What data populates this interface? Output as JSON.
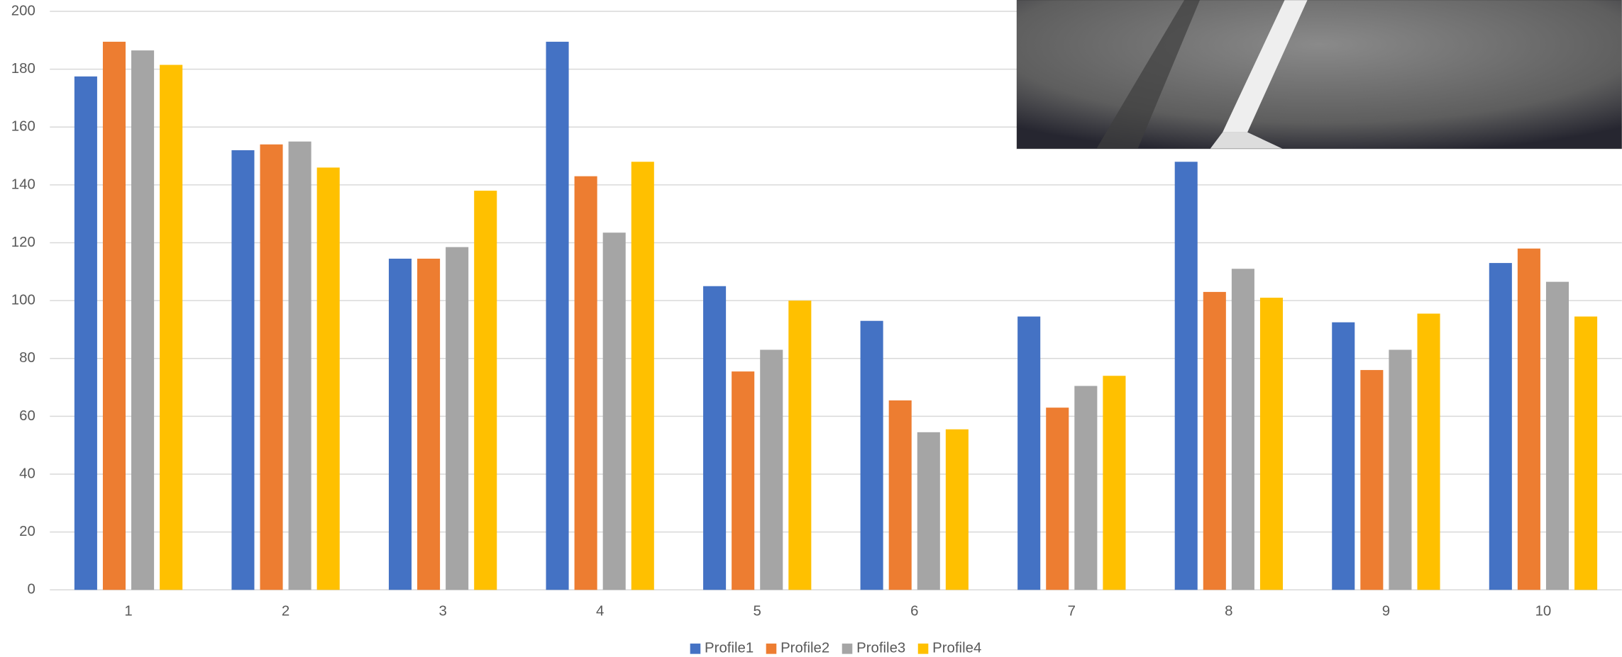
{
  "chart_data": {
    "type": "bar",
    "categories": [
      "1",
      "2",
      "3",
      "4",
      "5",
      "6",
      "7",
      "8",
      "9",
      "10"
    ],
    "series": [
      {
        "name": "Profile1",
        "color": "#4472c4",
        "values": [
          177.5,
          152,
          114.5,
          189.5,
          105,
          93,
          94.5,
          148,
          92.5,
          113
        ]
      },
      {
        "name": "Profile2",
        "color": "#ed7d31",
        "values": [
          189.5,
          154,
          114.5,
          143,
          75.5,
          65.5,
          63,
          103,
          76,
          118
        ]
      },
      {
        "name": "Profile3",
        "color": "#a5a5a5",
        "values": [
          186.5,
          155,
          118.5,
          123.5,
          83,
          54.5,
          70.5,
          111,
          83,
          106.5
        ]
      },
      {
        "name": "Profile4",
        "color": "#ffc000",
        "values": [
          181.5,
          146,
          138,
          148,
          100,
          55.5,
          74,
          101,
          95.5,
          94.5
        ]
      }
    ],
    "ylim": [
      0,
      200
    ],
    "yticks": [
      0,
      20,
      40,
      60,
      80,
      100,
      120,
      140,
      160,
      180,
      200
    ],
    "grid": true,
    "legend": "bottom"
  }
}
